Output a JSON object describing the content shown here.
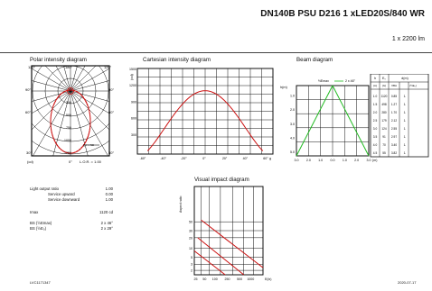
{
  "header": {
    "title": "DN140B PSU D216 1 xLED20S/840 WR",
    "subtitle": "1 x 2200 lm"
  },
  "polar": {
    "title": "Polar intensity diagram",
    "angle_labels": [
      "120°",
      "180°",
      "120°",
      "90°",
      "90°",
      "60°",
      "60°",
      "30°",
      "0°",
      "30°"
    ],
    "radial_labels": [
      "250",
      "500",
      "750",
      "1000",
      "1250"
    ],
    "unit": "(cd)",
    "lor": "L.O.R. = 1.00",
    "legend_symbol": "gamma"
  },
  "cartesian": {
    "title": "Cartesian intensity diagram",
    "ylabel": "(cd)",
    "yticks": [
      "1500",
      "1200",
      "900",
      "600",
      "300"
    ],
    "xticks": [
      "-60°",
      "-40°",
      "-20°",
      "0°",
      "20°",
      "40°",
      "60°"
    ],
    "xunit": "g"
  },
  "beam": {
    "title": "Beam diagram",
    "legend_label": "½Emax",
    "legend_value": "2 x 46°",
    "h_label": "h(m)",
    "h_values": [
      "1.0",
      "2.0",
      "3.0",
      "4.0",
      "5.0"
    ],
    "x_values": [
      "3.0",
      "2.0",
      "1.0",
      "0.0",
      "1.0",
      "2.0",
      "3.0"
    ],
    "x_unit": "(m)",
    "table_headers": [
      "h",
      "E₀",
      "d(m)"
    ],
    "table_sub": [
      "(m)",
      "(lx)",
      "VBA",
      "(½E₀)"
    ],
    "table_rows": [
      [
        "1.0",
        "1120",
        "0.85",
        "1."
      ],
      [
        "1.5",
        "498",
        "1.27",
        "1."
      ],
      [
        "2.0",
        "280",
        "1.70",
        "1."
      ],
      [
        "2.5",
        "179",
        "2.12",
        "1."
      ],
      [
        "3.0",
        "124",
        "2.55",
        "1."
      ],
      [
        "3.5",
        "91",
        "2.97",
        "1."
      ],
      [
        "4.0",
        "70",
        "3.40",
        "1."
      ],
      [
        "4.5",
        "55",
        "3.82",
        "1."
      ]
    ]
  },
  "visual": {
    "title": "Visual impact diagram",
    "ylabel": "Aspect ratio",
    "yticks": [
      "50",
      "30",
      "20",
      "10",
      "5",
      "3",
      "2"
    ],
    "xticks": [
      "25",
      "50",
      "100",
      "250",
      "500",
      "1000"
    ],
    "xunit": "E(lx)"
  },
  "info": {
    "rows": [
      {
        "label": "Light output ratio",
        "value": "1.00"
      },
      {
        "label": "Service upward",
        "value": "0.00"
      },
      {
        "label": "Service downward",
        "value": "1.00"
      },
      {
        "label": "Imax",
        "value": "1120 cd"
      },
      {
        "label": "BS (½Emax)",
        "value": "2 x 46°"
      },
      {
        "label": "BS (½E₀)",
        "value": "2 x 29°"
      }
    ]
  },
  "footer": {
    "code": "LVC1171347",
    "date": "2020-07-17"
  },
  "colors": {
    "curve": "#cc1111",
    "beam": "#22bb22",
    "grid": "#222222"
  }
}
